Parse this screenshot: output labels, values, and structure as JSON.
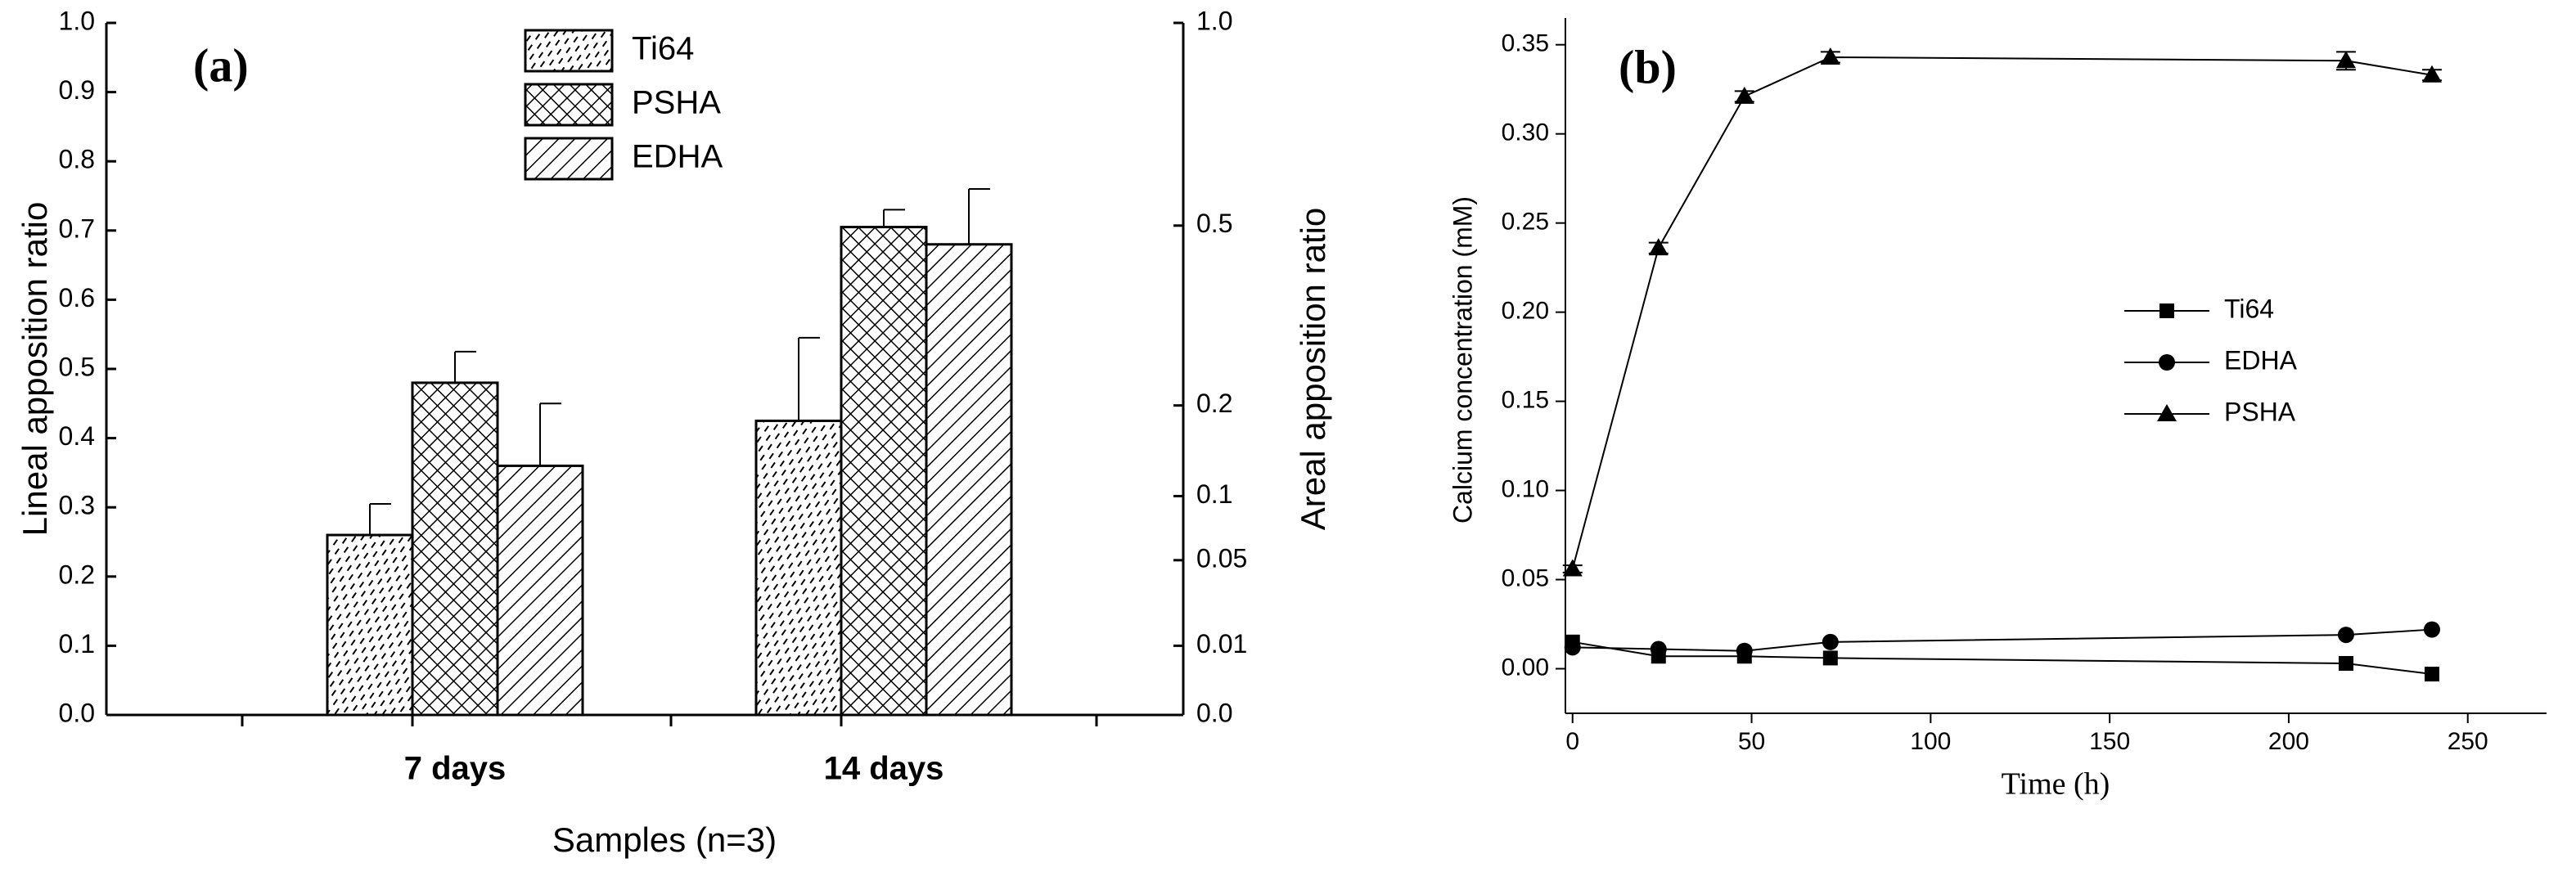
{
  "chart_data": [
    {
      "type": "bar",
      "annotation": "(a)",
      "ylabel": "Lineal apposition ratio",
      "y2label": "Areal apposition ratio",
      "xlabel": "Samples (n=3)",
      "categories": [
        "7 days",
        "14 days"
      ],
      "series": [
        {
          "name": "Ti64",
          "pattern": "dash",
          "values": [
            0.26,
            0.425
          ],
          "errors": [
            0.045,
            0.12
          ]
        },
        {
          "name": "PSHA",
          "pattern": "cross",
          "values": [
            0.48,
            0.705
          ],
          "errors": [
            0.045,
            0.025
          ]
        },
        {
          "name": "EDHA",
          "pattern": "diag",
          "values": [
            0.36,
            0.68
          ],
          "errors": [
            0.09,
            0.08
          ]
        }
      ],
      "ylim": [
        0,
        1
      ],
      "yticks": [
        {
          "value": 0,
          "label": "0.0"
        },
        0.1,
        0.2,
        0.3,
        0.4,
        0.5,
        0.6,
        0.7,
        0.8,
        0.9,
        {
          "value": 1,
          "label": "1.0"
        }
      ],
      "y2lim": [
        0,
        1
      ],
      "y2scale": "sqrt",
      "y2ticks": [
        {
          "value": 0,
          "label": "0.0"
        },
        0.01,
        0.05,
        0.1,
        0.2,
        0.5,
        {
          "value": 1,
          "label": "1.0"
        }
      ]
    },
    {
      "type": "line",
      "annotation": "(b)",
      "xlabel": "Time (h)",
      "ylabel": "Calcium concentration (mM)",
      "x": [
        0,
        24,
        48,
        72,
        216,
        240
      ],
      "series": [
        {
          "name": "Ti64",
          "marker": "square",
          "color": "#000000",
          "values": [
            0.015,
            0.007,
            0.007,
            0.006,
            0.003,
            -0.003
          ]
        },
        {
          "name": "EDHA",
          "marker": "circle",
          "color": "#000000",
          "values": [
            0.012,
            0.011,
            0.01,
            0.015,
            0.019,
            0.022
          ]
        },
        {
          "name": "PSHA",
          "marker": "triangle",
          "color": "#000000",
          "values": [
            0.056,
            0.236,
            0.321,
            0.343,
            0.341,
            0.333
          ],
          "errors": [
            0.002,
            0.003,
            0.003,
            0.003,
            0.005,
            0.003
          ]
        }
      ],
      "xlim": [
        -2,
        272
      ],
      "xticks": [
        0,
        50,
        100,
        150,
        200,
        250
      ],
      "ylim": [
        -0.025,
        0.365
      ],
      "yticks": [
        {
          "value": 0,
          "label": "0.00"
        },
        0.05,
        {
          "value": 0.1,
          "label": "0.10"
        },
        0.15,
        {
          "value": 0.2,
          "label": "0.20"
        },
        0.25,
        {
          "value": 0.3,
          "label": "0.30"
        },
        0.35
      ]
    }
  ]
}
